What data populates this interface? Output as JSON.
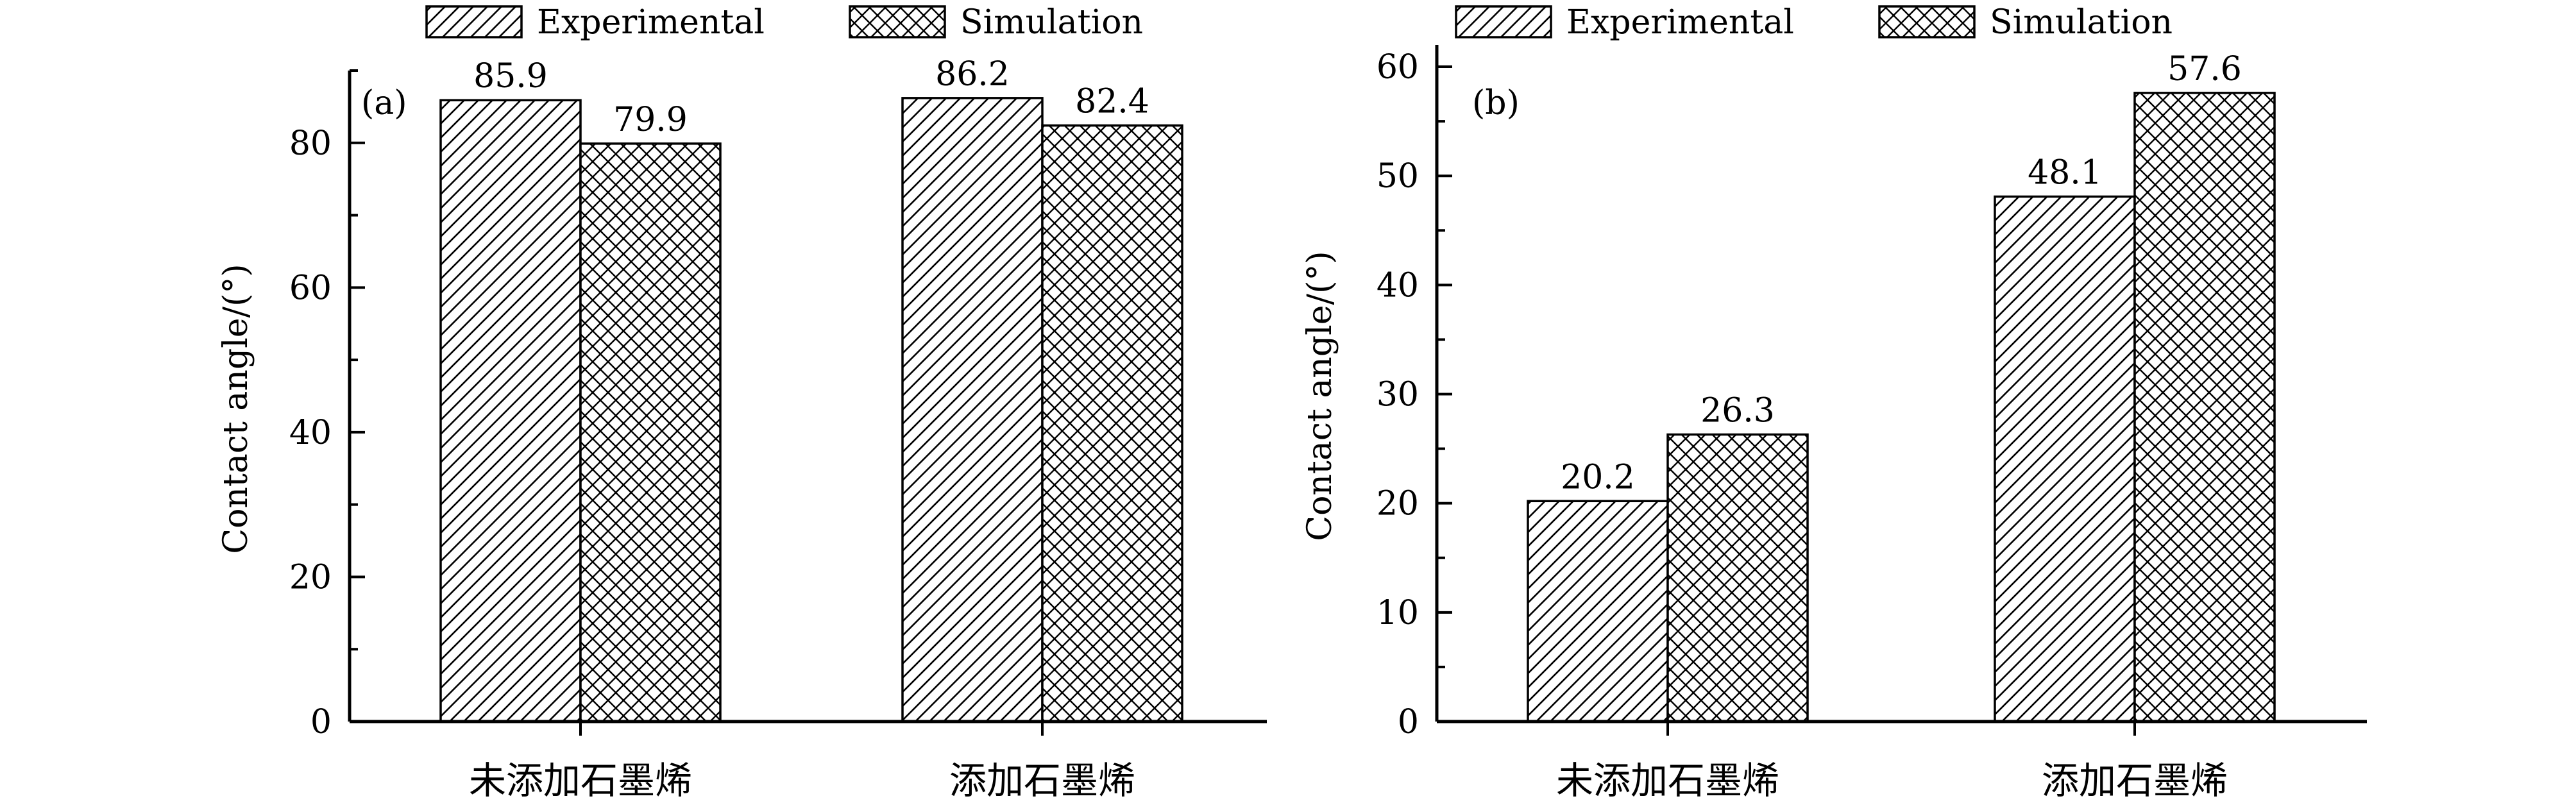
{
  "chart_data": [
    {
      "type": "bar",
      "panel_label": "(a)",
      "ylabel": "Contact angle/(°)",
      "categories": [
        "未添加石墨烯",
        "添加石墨烯"
      ],
      "series": [
        {
          "name": "Experimental",
          "values": [
            85.9,
            86.2
          ]
        },
        {
          "name": "Simulation",
          "values": [
            79.9,
            82.4
          ]
        }
      ],
      "value_labels": [
        [
          "85.9",
          "86.2"
        ],
        [
          "79.9",
          "82.4"
        ]
      ],
      "yticks": [
        0,
        20,
        40,
        60,
        80
      ],
      "ylim": [
        0,
        90
      ],
      "legend": "top"
    },
    {
      "type": "bar",
      "panel_label": "(b)",
      "ylabel": "Contact angle/(°)",
      "categories": [
        "未添加石墨烯",
        "添加石墨烯"
      ],
      "series": [
        {
          "name": "Experimental",
          "values": [
            20.2,
            48.1
          ]
        },
        {
          "name": "Simulation",
          "values": [
            26.3,
            57.6
          ]
        }
      ],
      "value_labels": [
        [
          "20.2",
          "48.1"
        ],
        [
          "26.3",
          "57.6"
        ]
      ],
      "yticks": [
        0,
        10,
        20,
        30,
        40,
        50,
        60
      ],
      "ylim": [
        0,
        62
      ],
      "legend": "top"
    }
  ],
  "colors": {
    "stroke": "#000000",
    "background": "#ffffff"
  },
  "patterns": [
    "diagonal-hatch",
    "cross-hatch"
  ]
}
